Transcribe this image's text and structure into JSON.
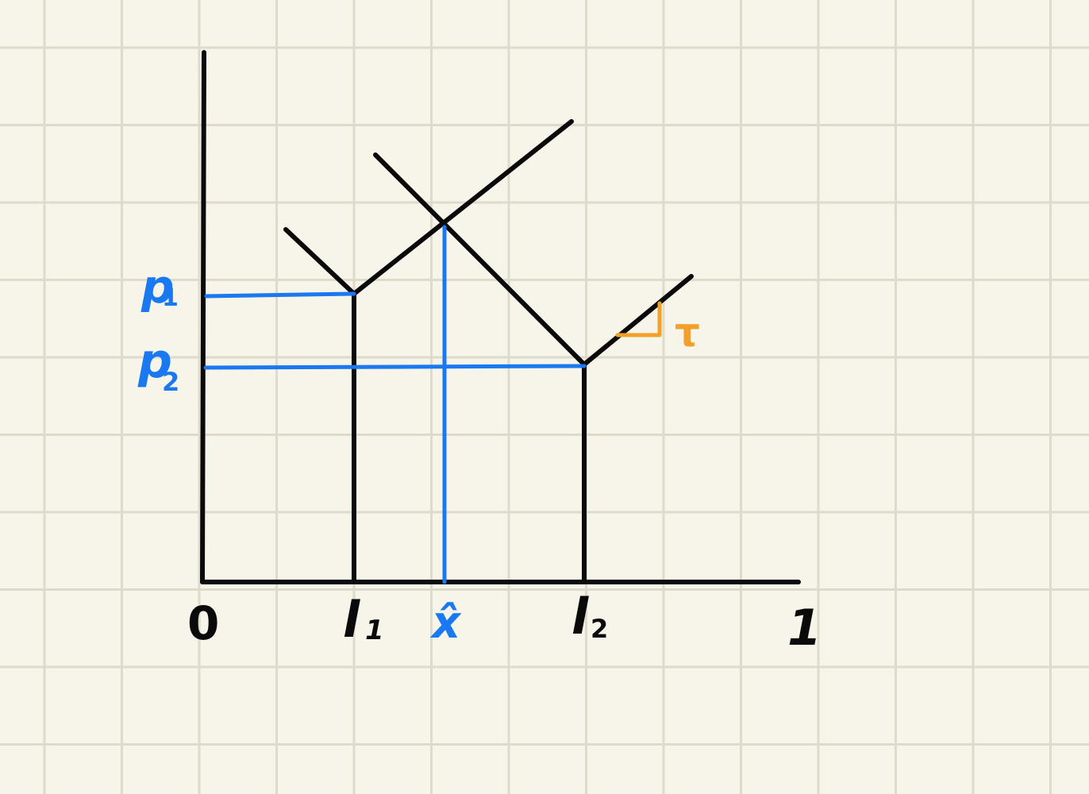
{
  "colors": {
    "paper": "#f7f5ea",
    "grid": "#dedbcc",
    "ink": "#0a0a0a",
    "blue": "#1a78f0",
    "orange": "#f2a02a"
  },
  "labels": {
    "origin": "0",
    "one": "1",
    "l1": {
      "base": "l",
      "sub": "1"
    },
    "l2": {
      "base": "l",
      "sub": "2"
    },
    "xhat": "x̂",
    "p1": {
      "base": "p",
      "sub": "1"
    },
    "p2": {
      "base": "p",
      "sub": "2"
    },
    "tau": "τ"
  }
}
